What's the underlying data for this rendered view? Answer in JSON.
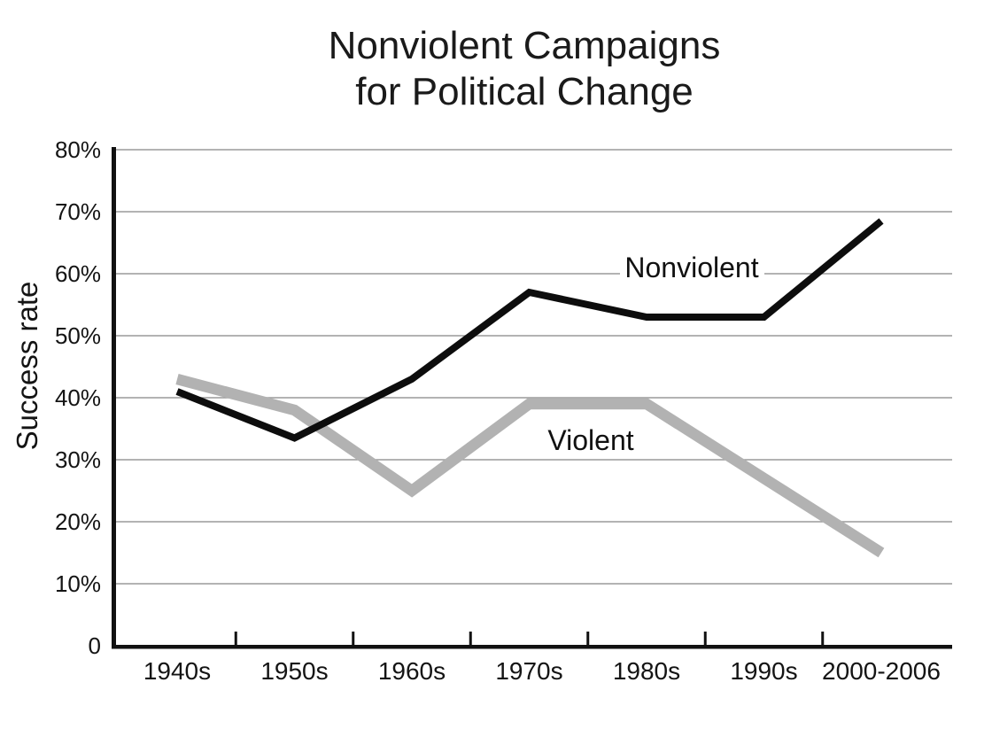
{
  "chart_data": {
    "type": "line",
    "title_line1": "Nonviolent Campaigns",
    "title_line2": "for Political Change",
    "ylabel": "Success rate",
    "xlabel": "",
    "categories": [
      "1940s",
      "1950s",
      "1960s",
      "1970s",
      "1980s",
      "1990s",
      "2000-2006"
    ],
    "series": [
      {
        "name": "Nonviolent",
        "color": "#0d0d0d",
        "stroke_width": 8,
        "values": [
          41,
          33.5,
          43,
          57,
          53,
          53,
          68.5
        ]
      },
      {
        "name": "Violent",
        "color": "#b2b2b2",
        "stroke_width": 12.5,
        "values": [
          43,
          38,
          25,
          39,
          39,
          27,
          15
        ]
      }
    ],
    "y_ticks": [
      {
        "value": 80,
        "label": "80%"
      },
      {
        "value": 70,
        "label": "70%"
      },
      {
        "value": 60,
        "label": "60%"
      },
      {
        "value": 50,
        "label": "50%"
      },
      {
        "value": 40,
        "label": "40%"
      },
      {
        "value": 30,
        "label": "30%"
      },
      {
        "value": 20,
        "label": "20%"
      },
      {
        "value": 10,
        "label": "10%"
      },
      {
        "value": 0,
        "label": "0"
      }
    ],
    "ylim": [
      0,
      80
    ],
    "grid": "horizontal",
    "legend": "inline-labels",
    "colors": {
      "nonviolent_line": "#0d0d0d",
      "violent_line": "#b2b2b2",
      "gridline": "#9a9a9a",
      "background": "#ffffff"
    }
  }
}
